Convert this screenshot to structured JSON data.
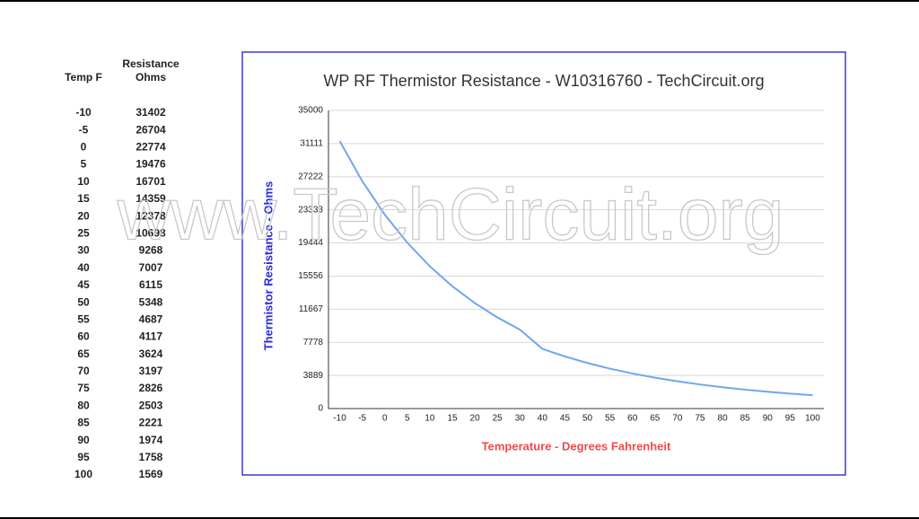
{
  "table": {
    "columns": [
      [
        "Temp F"
      ],
      [
        "Resistance",
        "Ohms"
      ]
    ],
    "rows": [
      [
        -10,
        31402
      ],
      [
        -5,
        26704
      ],
      [
        0,
        22774
      ],
      [
        5,
        19476
      ],
      [
        10,
        16701
      ],
      [
        15,
        14359
      ],
      [
        20,
        12378
      ],
      [
        25,
        10698
      ],
      [
        30,
        9268
      ],
      [
        40,
        7007
      ],
      [
        45,
        6115
      ],
      [
        50,
        5348
      ],
      [
        55,
        4687
      ],
      [
        60,
        4117
      ],
      [
        65,
        3624
      ],
      [
        70,
        3197
      ],
      [
        75,
        2826
      ],
      [
        80,
        2503
      ],
      [
        85,
        2221
      ],
      [
        90,
        1974
      ],
      [
        95,
        1758
      ],
      [
        100,
        1569
      ]
    ]
  },
  "watermark": "www.TechCircuit.org",
  "chart_data": {
    "type": "line",
    "title": "WP RF Thermistor Resistance - W10316760 - TechCircuit.org",
    "x_label": "Temperature - Degrees Fahrenheit",
    "y_label": "Thermistor Resistance - Ohms",
    "categories": [
      "-10",
      "-5",
      "0",
      "5",
      "10",
      "15",
      "20",
      "25",
      "30",
      "40",
      "45",
      "50",
      "55",
      "60",
      "65",
      "70",
      "75",
      "80",
      "85",
      "90",
      "95",
      "100"
    ],
    "series": [
      {
        "name": "Resistance",
        "color": "#6fa6ee",
        "values": [
          31402,
          26704,
          22774,
          19476,
          16701,
          14359,
          12378,
          10698,
          9268,
          7007,
          6115,
          5348,
          4687,
          4117,
          3624,
          3197,
          2826,
          2503,
          2221,
          1974,
          1758,
          1569
        ]
      }
    ],
    "ylim": [
      0,
      35000
    ],
    "yticks": [
      0,
      3889,
      7778,
      11667,
      15556,
      19444,
      23333,
      27222,
      31111,
      35000
    ],
    "grid": true
  }
}
